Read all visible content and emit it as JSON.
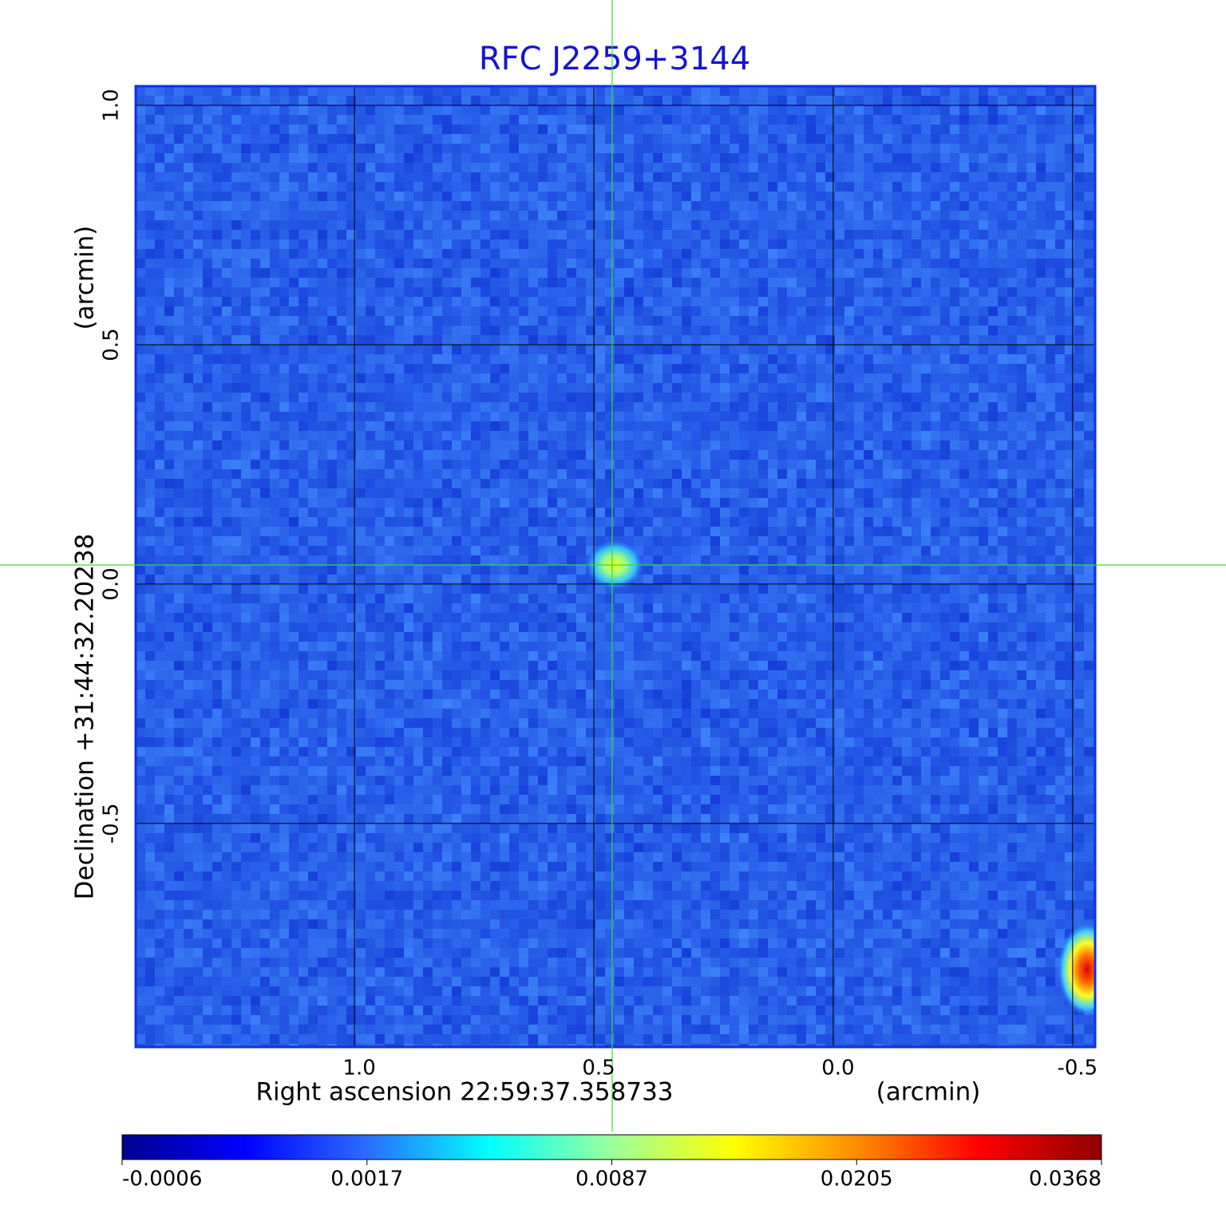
{
  "chart_data": {
    "type": "image",
    "title": "RFC J2259+3144",
    "x_label": "Right ascension  22:59:37.358733",
    "x_unit": "(arcmin)",
    "y_label": "Declination  +31:44:32.20238",
    "y_unit": "(arcmin)",
    "xlim": [
      1.457,
      -0.547
    ],
    "ylim": [
      -0.967,
      1.04
    ],
    "xticks": [
      {
        "value": 1,
        "label": "1.0"
      },
      0.5,
      {
        "value": 0,
        "label": "0.0"
      },
      -0.5
    ],
    "yticks": [
      -0.5,
      {
        "value": 0,
        "label": "0.0"
      },
      0.5,
      {
        "value": 1,
        "label": "1.0"
      }
    ],
    "grid": true,
    "colorbar_ticks": [
      -0.0006,
      0.0017,
      0.0087,
      0.0205,
      0.0368
    ],
    "colormap": [
      "#00008f",
      "#0000ff",
      "#2b6cff",
      "#00ffff",
      "#9bff9b",
      "#ffff00",
      "#ff8c00",
      "#ff0000",
      "#8f0000"
    ]
  }
}
